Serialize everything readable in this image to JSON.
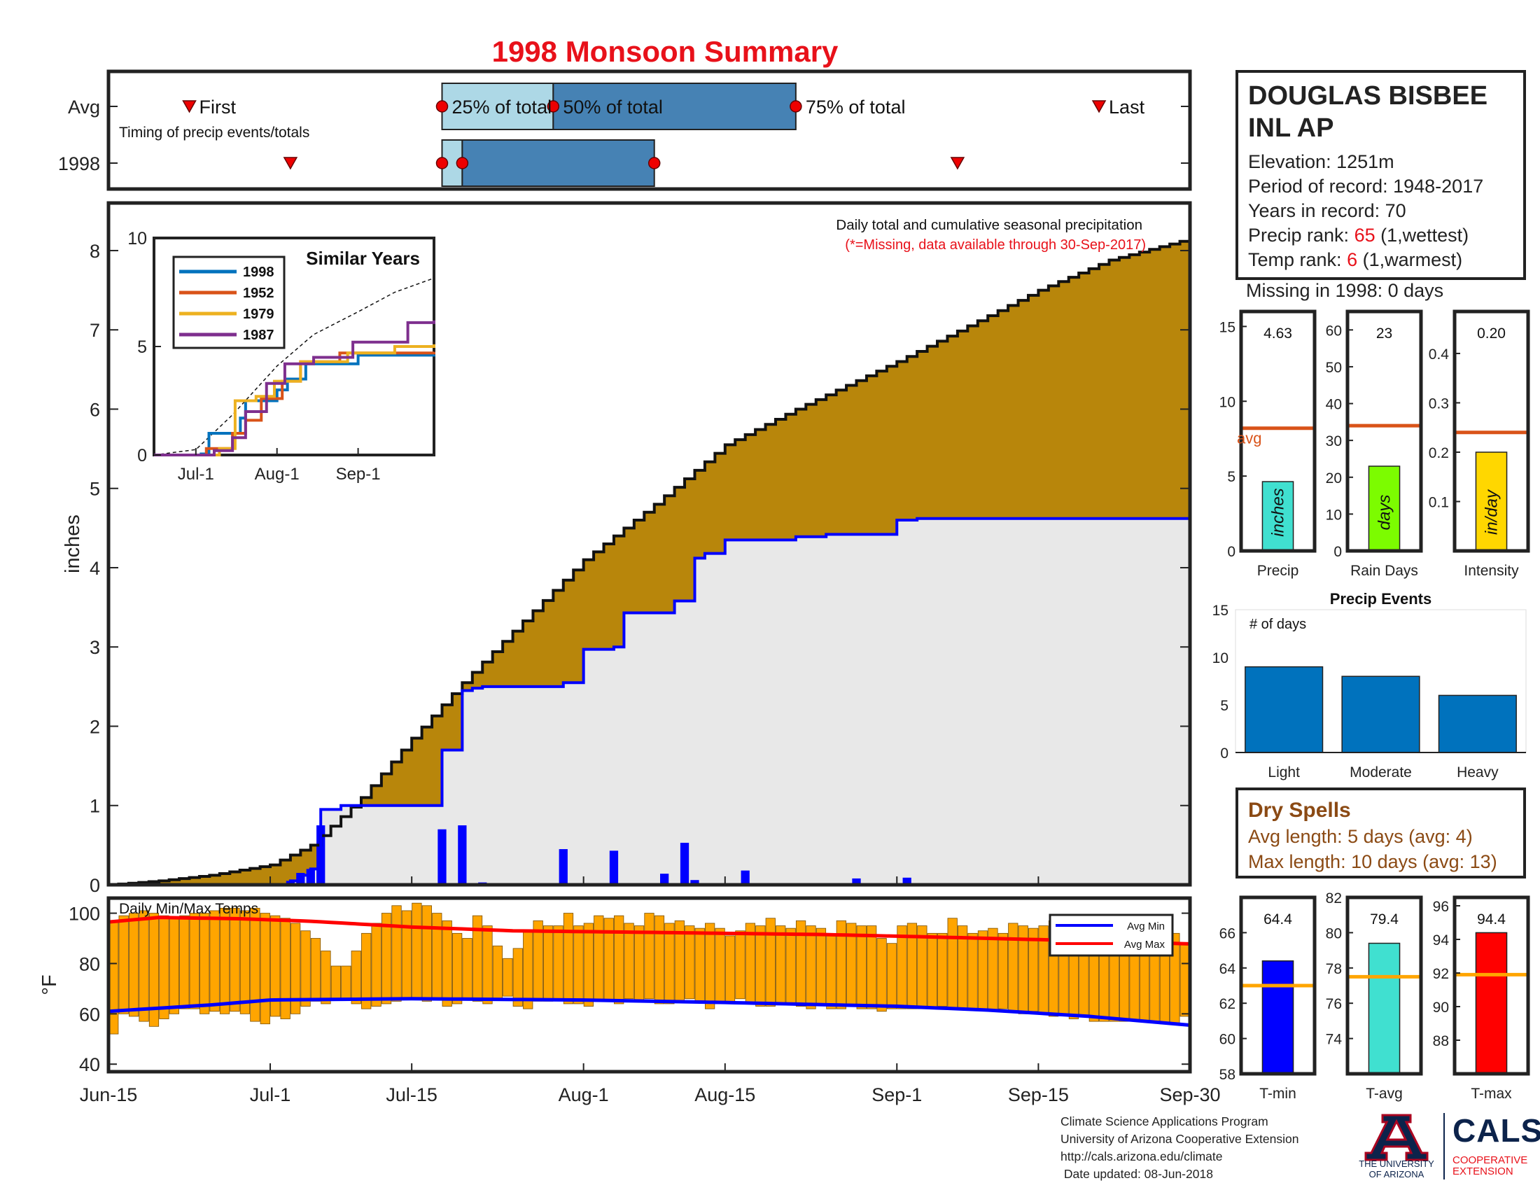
{
  "header": {
    "title": "1998 Monsoon Summary"
  },
  "station": {
    "name_line1": "DOUGLAS BISBEE",
    "name_line2": "INL AP",
    "elevation": "Elevation: 1251m",
    "period": "Period of record: 1948-2017",
    "years": "Years in record: 70",
    "precip_rank_label": "Precip rank:",
    "precip_rank_value": "65",
    "precip_rank_note": "(1,wettest)",
    "temp_rank_label": "Temp rank:",
    "temp_rank_value": "6",
    "temp_rank_note": "(1,warmest)",
    "missing": "Missing in 1998: 0 days"
  },
  "timing": {
    "avg_label": "Avg",
    "year_label": "1998",
    "caption": "Timing of precip events/totals",
    "first_label": "First",
    "last_label": "Last",
    "p25_label": "25% of total",
    "p50_label": "50% of total",
    "p75_label": "75% of total",
    "avg": {
      "first": "2017-06-23",
      "p25": "2017-07-18",
      "p50": "2017-07-29",
      "p75": "2017-08-22",
      "last": "2017-09-21"
    },
    "y1998": {
      "first": "2017-07-03",
      "p25": "2017-07-18",
      "p50": "2017-07-20",
      "p75": "2017-08-08",
      "last": "2017-09-07"
    }
  },
  "chart_data": [
    {
      "id": "main",
      "type": "area",
      "title": "Daily total and cumulative seasonal precipitation",
      "subtitle": "(*=Missing, data available through 30-Sep-2017)",
      "ylabel": "inches",
      "ylim": [
        0,
        8.6
      ],
      "yticks": [
        0,
        1,
        2,
        3,
        4,
        5,
        6,
        7,
        8
      ],
      "xrange": [
        "2017-06-15",
        "2017-09-30"
      ],
      "xticks": [
        {
          "date": "2017-06-15",
          "label": "Jun-15"
        },
        {
          "date": "2017-07-01",
          "label": "Jul-1"
        },
        {
          "date": "2017-07-15",
          "label": "Jul-15"
        },
        {
          "date": "2017-08-01",
          "label": "Aug-1"
        },
        {
          "date": "2017-08-15",
          "label": "Aug-15"
        },
        {
          "date": "2017-09-01",
          "label": "Sep-1"
        },
        {
          "date": "2017-09-15",
          "label": "Sep-15"
        },
        {
          "date": "2017-09-30",
          "label": "Sep-30"
        }
      ],
      "avg_cumulative": [
        {
          "date": "2017-06-15",
          "value": 0.0
        },
        {
          "date": "2017-06-20",
          "value": 0.05
        },
        {
          "date": "2017-06-25",
          "value": 0.12
        },
        {
          "date": "2017-07-01",
          "value": 0.25
        },
        {
          "date": "2017-07-05",
          "value": 0.5
        },
        {
          "date": "2017-07-10",
          "value": 1.1
        },
        {
          "date": "2017-07-15",
          "value": 1.85
        },
        {
          "date": "2017-07-20",
          "value": 2.55
        },
        {
          "date": "2017-07-25",
          "value": 3.2
        },
        {
          "date": "2017-08-01",
          "value": 4.1
        },
        {
          "date": "2017-08-08",
          "value": 4.8
        },
        {
          "date": "2017-08-15",
          "value": 5.55
        },
        {
          "date": "2017-08-22",
          "value": 6.0
        },
        {
          "date": "2017-09-01",
          "value": 6.6
        },
        {
          "date": "2017-09-08",
          "value": 7.05
        },
        {
          "date": "2017-09-15",
          "value": 7.5
        },
        {
          "date": "2017-09-22",
          "value": 7.88
        },
        {
          "date": "2017-09-30",
          "value": 8.15
        }
      ],
      "year_cumulative": [
        {
          "date": "2017-07-03",
          "value": 0.05
        },
        {
          "date": "2017-07-04",
          "value": 0.12
        },
        {
          "date": "2017-07-05",
          "value": 0.2
        },
        {
          "date": "2017-07-06",
          "value": 0.95
        },
        {
          "date": "2017-07-08",
          "value": 1.0
        },
        {
          "date": "2017-07-18",
          "value": 1.7
        },
        {
          "date": "2017-07-20",
          "value": 2.45
        },
        {
          "date": "2017-07-21",
          "value": 2.48
        },
        {
          "date": "2017-07-22",
          "value": 2.5
        },
        {
          "date": "2017-07-30",
          "value": 2.55
        },
        {
          "date": "2017-08-01",
          "value": 2.97
        },
        {
          "date": "2017-08-04",
          "value": 3.0
        },
        {
          "date": "2017-08-05",
          "value": 3.43
        },
        {
          "date": "2017-08-10",
          "value": 3.58
        },
        {
          "date": "2017-08-12",
          "value": 4.12
        },
        {
          "date": "2017-08-13",
          "value": 4.18
        },
        {
          "date": "2017-08-15",
          "value": 4.35
        },
        {
          "date": "2017-08-22",
          "value": 4.39
        },
        {
          "date": "2017-08-25",
          "value": 4.42
        },
        {
          "date": "2017-09-01",
          "value": 4.6
        },
        {
          "date": "2017-09-03",
          "value": 4.62
        },
        {
          "date": "2017-09-30",
          "value": 4.63
        }
      ],
      "daily_precip": [
        {
          "date": "2017-07-03",
          "value": 0.05
        },
        {
          "date": "2017-07-04",
          "value": 0.15
        },
        {
          "date": "2017-07-05",
          "value": 0.2
        },
        {
          "date": "2017-07-06",
          "value": 0.75
        },
        {
          "date": "2017-07-18",
          "value": 0.7
        },
        {
          "date": "2017-07-20",
          "value": 0.75
        },
        {
          "date": "2017-07-22",
          "value": 0.03
        },
        {
          "date": "2017-07-30",
          "value": 0.45
        },
        {
          "date": "2017-08-04",
          "value": 0.43
        },
        {
          "date": "2017-08-09",
          "value": 0.14
        },
        {
          "date": "2017-08-11",
          "value": 0.53
        },
        {
          "date": "2017-08-12",
          "value": 0.06
        },
        {
          "date": "2017-08-17",
          "value": 0.18
        },
        {
          "date": "2017-08-28",
          "value": 0.08
        },
        {
          "date": "2017-09-02",
          "value": 0.09
        }
      ]
    },
    {
      "id": "similar",
      "type": "line",
      "title": "Similar Years",
      "ylim": [
        0,
        10
      ],
      "yticks": [
        0,
        5,
        10
      ],
      "xrange": [
        "2017-06-15",
        "2017-09-30"
      ],
      "xticks": [
        {
          "date": "2017-07-01",
          "label": "Jul-1"
        },
        {
          "date": "2017-08-01",
          "label": "Aug-1"
        },
        {
          "date": "2017-09-01",
          "label": "Sep-1"
        }
      ],
      "series": [
        {
          "name": "1998",
          "color": "#0072bd",
          "points": [
            {
              "date": "2017-06-15",
              "value": 0
            },
            {
              "date": "2017-07-03",
              "value": 0.05
            },
            {
              "date": "2017-07-06",
              "value": 1.0
            },
            {
              "date": "2017-07-18",
              "value": 1.7
            },
            {
              "date": "2017-07-20",
              "value": 2.5
            },
            {
              "date": "2017-08-01",
              "value": 3.0
            },
            {
              "date": "2017-08-05",
              "value": 3.5
            },
            {
              "date": "2017-08-12",
              "value": 4.2
            },
            {
              "date": "2017-09-01",
              "value": 4.6
            },
            {
              "date": "2017-09-30",
              "value": 4.63
            }
          ]
        },
        {
          "name": "1952",
          "color": "#d95319",
          "points": [
            {
              "date": "2017-06-15",
              "value": 0
            },
            {
              "date": "2017-07-05",
              "value": 0.3
            },
            {
              "date": "2017-07-15",
              "value": 1.0
            },
            {
              "date": "2017-07-20",
              "value": 1.6
            },
            {
              "date": "2017-07-26",
              "value": 2.6
            },
            {
              "date": "2017-08-03",
              "value": 3.4
            },
            {
              "date": "2017-08-10",
              "value": 4.3
            },
            {
              "date": "2017-08-25",
              "value": 4.7
            },
            {
              "date": "2017-09-30",
              "value": 4.75
            }
          ]
        },
        {
          "name": "1979",
          "color": "#edb120",
          "points": [
            {
              "date": "2017-06-15",
              "value": 0
            },
            {
              "date": "2017-07-10",
              "value": 0.3
            },
            {
              "date": "2017-07-16",
              "value": 2.5
            },
            {
              "date": "2017-07-24",
              "value": 2.7
            },
            {
              "date": "2017-07-31",
              "value": 3.4
            },
            {
              "date": "2017-08-10",
              "value": 4.3
            },
            {
              "date": "2017-08-28",
              "value": 4.7
            },
            {
              "date": "2017-09-15",
              "value": 5.0
            },
            {
              "date": "2017-09-30",
              "value": 5.1
            }
          ]
        },
        {
          "name": "1987",
          "color": "#7e2f8e",
          "points": [
            {
              "date": "2017-06-15",
              "value": 0
            },
            {
              "date": "2017-07-08",
              "value": 0.2
            },
            {
              "date": "2017-07-15",
              "value": 0.8
            },
            {
              "date": "2017-07-20",
              "value": 2.0
            },
            {
              "date": "2017-07-28",
              "value": 3.3
            },
            {
              "date": "2017-08-04",
              "value": 4.2
            },
            {
              "date": "2017-08-15",
              "value": 4.5
            },
            {
              "date": "2017-08-30",
              "value": 5.2
            },
            {
              "date": "2017-09-20",
              "value": 6.1
            },
            {
              "date": "2017-09-30",
              "value": 6.2
            }
          ]
        }
      ],
      "avg_series": [
        {
          "date": "2017-06-15",
          "value": 0
        },
        {
          "date": "2017-07-01",
          "value": 0.25
        },
        {
          "date": "2017-07-15",
          "value": 1.85
        },
        {
          "date": "2017-08-01",
          "value": 4.1
        },
        {
          "date": "2017-08-15",
          "value": 5.55
        },
        {
          "date": "2017-09-01",
          "value": 6.6
        },
        {
          "date": "2017-09-15",
          "value": 7.5
        },
        {
          "date": "2017-09-30",
          "value": 8.15
        }
      ]
    },
    {
      "id": "temps",
      "type": "bar",
      "title": "Daily Min/Max Temps",
      "ylabel": "°F",
      "ylim": [
        37,
        106
      ],
      "yticks": [
        40,
        60,
        80,
        100
      ],
      "xrange": [
        "2017-06-15",
        "2017-09-30"
      ],
      "legend": [
        "Avg Min",
        "Avg Max"
      ],
      "legend_position": "top-right",
      "daily_max": [
        97,
        99,
        100,
        101,
        100,
        99,
        98,
        99,
        100,
        100,
        101,
        102,
        102,
        101,
        102,
        100,
        99,
        98,
        96,
        93,
        90,
        85,
        79,
        79,
        85,
        92,
        96,
        100,
        103,
        101,
        104,
        103,
        100,
        97,
        92,
        90,
        99,
        95,
        87,
        82,
        86,
        93,
        97,
        95,
        95,
        100,
        95,
        96,
        99,
        98,
        99,
        96,
        95,
        100,
        99,
        96,
        97,
        95,
        94,
        96,
        94,
        91,
        93,
        96,
        95,
        98,
        95,
        94,
        97,
        95,
        94,
        91,
        97,
        96,
        95,
        95,
        90,
        88,
        95,
        96,
        95,
        92,
        92,
        98,
        95,
        92,
        93,
        94,
        92,
        96,
        95,
        94,
        95,
        97,
        95,
        96,
        97,
        96,
        93,
        95,
        96,
        95,
        92,
        94,
        96,
        92,
        88
      ],
      "daily_min": [
        52,
        60,
        59,
        57,
        55,
        58,
        60,
        62,
        62,
        60,
        61,
        60,
        61,
        60,
        57,
        56,
        59,
        58,
        60,
        63,
        65,
        64,
        66,
        66,
        64,
        62,
        63,
        64,
        65,
        66,
        66,
        65,
        66,
        63,
        64,
        66,
        65,
        64,
        66,
        67,
        63,
        62,
        65,
        65,
        66,
        64,
        64,
        63,
        65,
        65,
        64,
        66,
        65,
        66,
        64,
        64,
        65,
        66,
        65,
        62,
        64,
        65,
        66,
        64,
        63,
        63,
        64,
        64,
        63,
        62,
        64,
        62,
        62,
        63,
        62,
        62,
        61,
        62,
        62,
        62,
        62,
        62,
        63,
        62,
        62,
        62,
        62,
        61,
        62,
        61,
        60,
        61,
        60,
        59,
        60,
        58,
        59,
        57,
        57,
        57,
        57,
        57,
        57,
        57,
        56,
        56,
        59
      ],
      "avg_max": [
        {
          "date": "2017-06-15",
          "value": 96.5
        },
        {
          "date": "2017-06-20",
          "value": 98.3
        },
        {
          "date": "2017-06-28",
          "value": 97.8
        },
        {
          "date": "2017-07-05",
          "value": 96.8
        },
        {
          "date": "2017-07-15",
          "value": 94.5
        },
        {
          "date": "2017-07-25",
          "value": 93.0
        },
        {
          "date": "2017-08-05",
          "value": 92.5
        },
        {
          "date": "2017-08-15",
          "value": 92.0
        },
        {
          "date": "2017-08-25",
          "value": 91.5
        },
        {
          "date": "2017-09-05",
          "value": 90.5
        },
        {
          "date": "2017-09-15",
          "value": 89.5
        },
        {
          "date": "2017-09-22",
          "value": 88.8
        },
        {
          "date": "2017-09-30",
          "value": 87.8
        }
      ],
      "avg_min": [
        {
          "date": "2017-06-15",
          "value": 61.0
        },
        {
          "date": "2017-06-25",
          "value": 63.5
        },
        {
          "date": "2017-07-01",
          "value": 65.5
        },
        {
          "date": "2017-07-15",
          "value": 66.0
        },
        {
          "date": "2017-08-01",
          "value": 65.5
        },
        {
          "date": "2017-08-15",
          "value": 64.5
        },
        {
          "date": "2017-09-01",
          "value": 63.0
        },
        {
          "date": "2017-09-10",
          "value": 61.5
        },
        {
          "date": "2017-09-20",
          "value": 59.0
        },
        {
          "date": "2017-09-30",
          "value": 55.5
        }
      ]
    },
    {
      "id": "precip_stat",
      "type": "bar",
      "xlabel": "Precip",
      "inner_label": "inches",
      "value": 4.63,
      "value_label": "4.63",
      "avg": 8.2,
      "avg_label": "avg",
      "ylim": [
        0,
        16
      ],
      "yticks": [
        0,
        5,
        10,
        15
      ],
      "color": "#40e0d0"
    },
    {
      "id": "raindays_stat",
      "type": "bar",
      "xlabel": "Rain Days",
      "inner_label": "days",
      "value": 23,
      "value_label": "23",
      "avg": 34,
      "ylim": [
        0,
        65
      ],
      "yticks": [
        0,
        10,
        20,
        30,
        40,
        50,
        60
      ],
      "color": "#7cfc00"
    },
    {
      "id": "intensity_stat",
      "type": "bar",
      "xlabel": "Intensity",
      "inner_label": "in/day",
      "value": 0.2,
      "value_label": "0.20",
      "avg": 0.24,
      "ylim": [
        0,
        0.485
      ],
      "yticks": [
        0.1,
        0.2,
        0.3,
        0.4
      ],
      "ytick_labels": [
        "0.1",
        "0.2",
        "0.3",
        "0.4"
      ],
      "color": "#ffd700"
    },
    {
      "id": "events",
      "type": "bar",
      "title": "Precip Events",
      "annotation": "# of days",
      "categories": [
        "Light",
        "Moderate",
        "Heavy"
      ],
      "values": [
        9,
        8,
        6
      ],
      "ylim": [
        0,
        15
      ],
      "yticks": [
        0,
        5,
        10,
        15
      ],
      "color": "#0072bd"
    },
    {
      "id": "tmin_stat",
      "type": "bar",
      "xlabel": "T-min",
      "value": 64.4,
      "value_label": "64.4",
      "avg": 63.0,
      "ylim": [
        58,
        68
      ],
      "yticks": [
        58,
        60,
        62,
        64,
        66
      ],
      "color": "#0000ff"
    },
    {
      "id": "tavg_stat",
      "type": "bar",
      "xlabel": "T-avg",
      "value": 79.4,
      "value_label": "79.4",
      "avg": 77.5,
      "ylim": [
        72,
        82
      ],
      "yticks": [
        74,
        76,
        78,
        80,
        82
      ],
      "color": "#40e0d0"
    },
    {
      "id": "tmax_stat",
      "type": "bar",
      "xlabel": "T-max",
      "value": 94.4,
      "value_label": "94.4",
      "avg": 91.9,
      "ylim": [
        86,
        96.5
      ],
      "yticks": [
        88,
        90,
        92,
        94,
        96
      ],
      "color": "#ff0000"
    }
  ],
  "dry_spells": {
    "title": "Dry Spells",
    "avg_length": "Avg length: 5 days (avg: 4)",
    "max_length": "Max length: 10 days (avg: 13)"
  },
  "credits": {
    "line1": "Climate Science Applications Program",
    "line2": "University of Arizona Cooperative Extension",
    "line3": "http://cals.arizona.edu/climate",
    "line4": " Date updated: 08-Jun-2018"
  },
  "logos": {
    "ua_caption_1": "THE UNIVERSITY",
    "ua_caption_2": "OF ARIZONA",
    "cals_word": "CALS",
    "cals_sub_1": "COOPERATIVE",
    "cals_sub_2": "EXTENSION"
  },
  "colors": {
    "avg_fill": "#b8860b",
    "year_fill": "#e8e8e8",
    "year_line": "#0000ff",
    "daily_bar": "#0000ff",
    "temp_bar": "#ffa500",
    "avg_line": "#d95319",
    "temp_avg_line": "#ffa500",
    "title_red": "#e8111a"
  }
}
